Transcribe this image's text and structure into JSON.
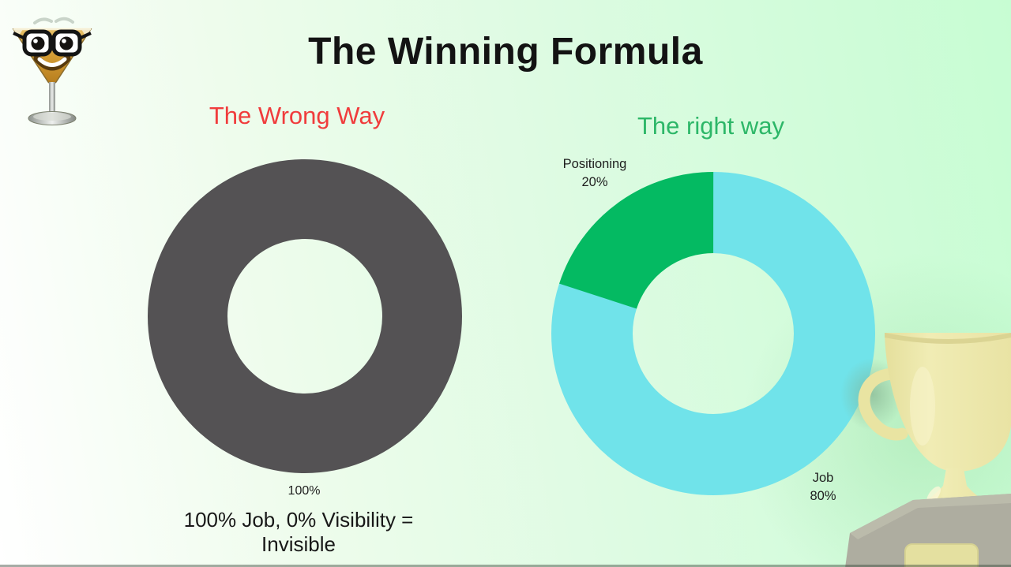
{
  "page": {
    "title": "The Winning Formula"
  },
  "icons": {
    "logo": "martini-glass-face-icon",
    "decoration": "trophy-3d-image"
  },
  "sections": {
    "wrong": {
      "heading": "The Wrong Way",
      "heading_color": "#f03c3c",
      "caption_line1": "100% Job, 0% Visibility =",
      "caption_line2": "Invisible"
    },
    "right": {
      "heading": "The right way",
      "heading_color": "#2db768"
    }
  },
  "chart_data": [
    {
      "type": "pie",
      "donut": true,
      "title": "The Wrong Way",
      "start_angle": "top",
      "direction": "clockwise",
      "legend_position": "none",
      "slices": [
        {
          "label": "Job",
          "value": 100,
          "color": "#545254",
          "value_label": "100%"
        }
      ]
    },
    {
      "type": "pie",
      "donut": true,
      "title": "The right way",
      "start_angle": "top",
      "direction": "clockwise",
      "legend_position": "none",
      "slices": [
        {
          "label": "Job",
          "value": 80,
          "color": "#70e3ea",
          "value_label": "80%"
        },
        {
          "label": "Positioning",
          "value": 20,
          "color": "#04ba62",
          "value_label": "20%"
        }
      ]
    }
  ]
}
